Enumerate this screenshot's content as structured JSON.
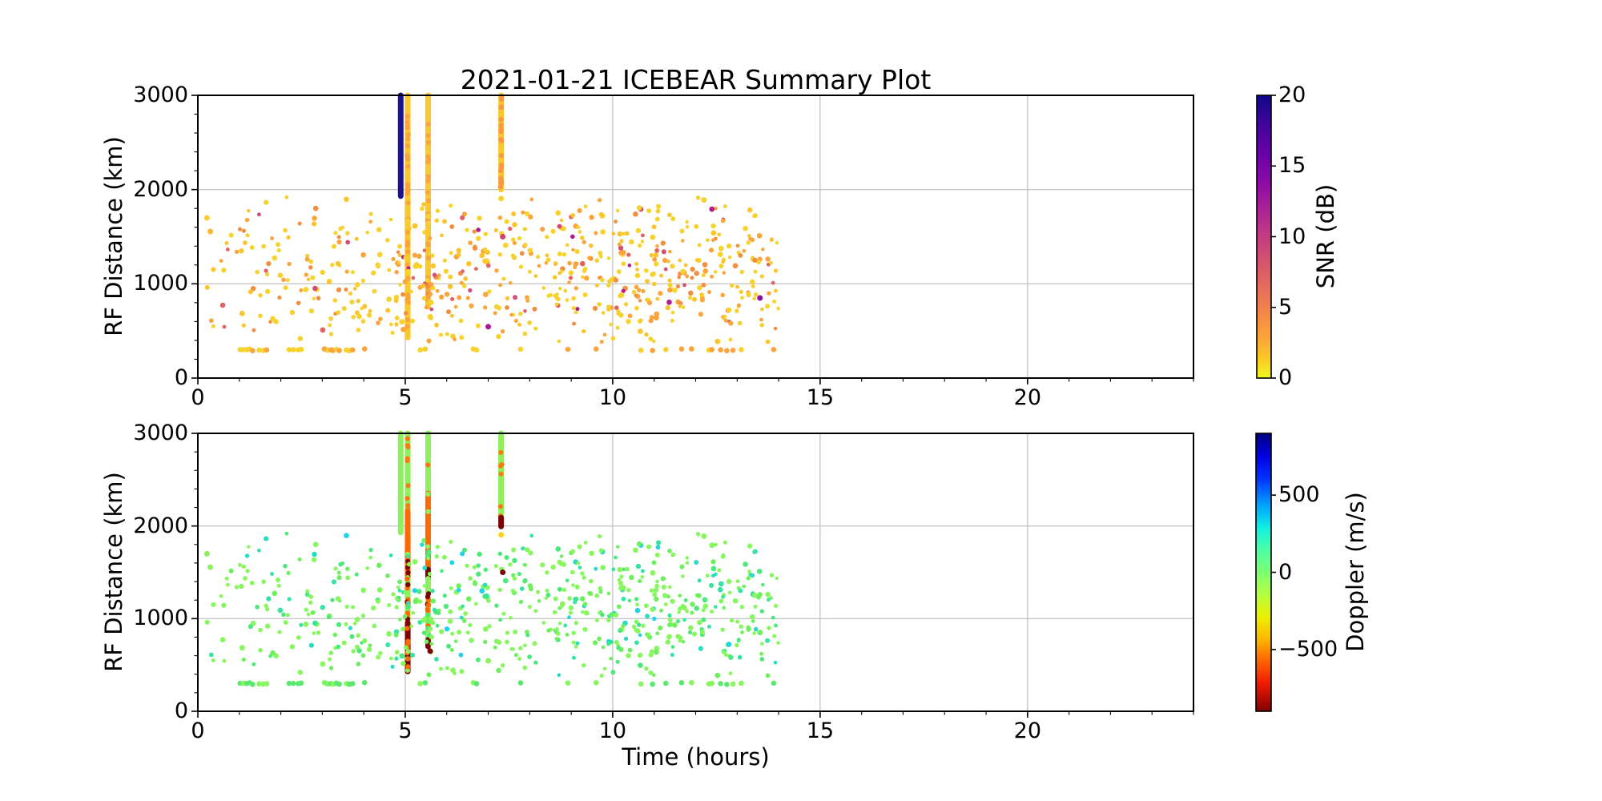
{
  "figure": {
    "title": "2021-01-21 ICEBEAR Summary Plot",
    "background": "#ffffff"
  },
  "chart_data": {
    "type": "scatter",
    "title": "2021-01-21 ICEBEAR Summary Plot",
    "xlabel": "Time (hours)",
    "x_range": [
      0,
      24
    ],
    "x_major_ticks": [
      0,
      5,
      10,
      15,
      20
    ],
    "x_tick_labels": [
      "0",
      "5",
      "10",
      "15",
      "20"
    ],
    "x_minor_step": 1,
    "grid": true,
    "style": {
      "spine_color": "#000000",
      "grid_color": "#bdbdbd",
      "tick_color": "#000000",
      "text_color": "#000000"
    },
    "panels": [
      {
        "id": "snr",
        "ylabel": "RF Distance (km)",
        "y_range": [
          0,
          3000
        ],
        "y_major_ticks": [
          0,
          1000,
          2000,
          3000
        ],
        "y_tick_labels": [
          "0",
          "1000",
          "2000",
          "3000"
        ],
        "y_minor_step": 200,
        "colorbar": {
          "label": "SNR (dB)",
          "range": [
            0,
            20
          ],
          "tick_values": [
            0,
            5,
            10,
            15,
            20
          ],
          "tick_labels": [
            "0",
            "5",
            "10",
            "15",
            "20"
          ],
          "colormap": "plasma reversed (0=yellow, 20=dark blue)",
          "gradient_top_to_bottom": [
            [
              0,
              "#0d0887"
            ],
            [
              10,
              "#41049d"
            ],
            [
              21,
              "#6a00a8"
            ],
            [
              32,
              "#8f0da4"
            ],
            [
              43,
              "#b12a90"
            ],
            [
              54,
              "#cc4778"
            ],
            [
              65,
              "#e16462"
            ],
            [
              76,
              "#f2844b"
            ],
            [
              86,
              "#fca636"
            ],
            [
              94,
              "#fcce25"
            ],
            [
              100,
              "#f0f921"
            ]
          ]
        }
      },
      {
        "id": "doppler",
        "ylabel": "RF Distance (km)",
        "y_range": [
          0,
          3000
        ],
        "y_major_ticks": [
          0,
          1000,
          2000,
          3000
        ],
        "y_tick_labels": [
          "0",
          "1000",
          "2000",
          "3000"
        ],
        "y_minor_step": 200,
        "colorbar": {
          "label": "Doppler (m/s)",
          "range": [
            -900,
            900
          ],
          "tick_values": [
            500,
            0,
            -500
          ],
          "tick_labels": [
            "500",
            "0",
            "−500"
          ],
          "colormap": "jet reversed (-900=dark red, 0=green, +900=dark blue)",
          "gradient_top_to_bottom": [
            [
              0,
              "#000080"
            ],
            [
              8,
              "#0000e0"
            ],
            [
              16,
              "#0030ff"
            ],
            [
              26,
              "#00a4ff"
            ],
            [
              34,
              "#0ff0e1"
            ],
            [
              42,
              "#4dffa5"
            ],
            [
              50,
              "#7dff73"
            ],
            [
              58,
              "#b4ff42"
            ],
            [
              66,
              "#eaf000"
            ],
            [
              74,
              "#ffb600"
            ],
            [
              82,
              "#ff6200"
            ],
            [
              90,
              "#ef1a00"
            ],
            [
              100,
              "#7f0000"
            ]
          ]
        }
      }
    ],
    "cloud": {
      "comment": "background echo scatter, identical point positions in both panels, t in hours, y in km",
      "seed": 1337,
      "count": 640,
      "t_extent": [
        0.2,
        14.05
      ],
      "t_bands": [
        [
          0.2,
          1.0,
          0.02
        ],
        [
          1.0,
          2.6,
          0.06
        ],
        [
          2.6,
          4.6,
          0.1
        ],
        [
          4.6,
          7.2,
          0.22
        ],
        [
          7.2,
          10.2,
          0.27
        ],
        [
          10.2,
          14.05,
          0.33
        ]
      ],
      "y_bands": [
        [
          380,
          560,
          0.06
        ],
        [
          560,
          800,
          0.15
        ],
        [
          800,
          1100,
          0.26
        ],
        [
          1100,
          1420,
          0.28
        ],
        [
          1420,
          1680,
          0.16
        ],
        [
          1680,
          1820,
          0.07
        ],
        [
          1820,
          1930,
          0.02
        ]
      ],
      "snr_palette": [
        [
          "#f7d22e",
          0.4
        ],
        [
          "#fcc42c",
          0.16
        ],
        [
          "#fba43b",
          0.22
        ],
        [
          "#f28e40",
          0.11
        ],
        [
          "#e16462",
          0.07
        ],
        [
          "#d14f73",
          0.03
        ],
        [
          "#b21d8e",
          0.01
        ]
      ],
      "doppler_palette": [
        [
          "#86f75d",
          0.5
        ],
        [
          "#6ef05e",
          0.2
        ],
        [
          "#4be87a",
          0.13
        ],
        [
          "#35e4a0",
          0.09
        ],
        [
          "#28dcc4",
          0.05
        ],
        [
          "#1fd3e8",
          0.03
        ]
      ],
      "radius_px": [
        2.2,
        3.4
      ]
    },
    "row_300km": {
      "comment": "row of echoes near 300 km range",
      "y_km": 300,
      "y_jitter_km": 10,
      "t_positions": [
        1.02,
        1.1,
        1.18,
        1.25,
        1.32,
        1.48,
        1.58,
        1.66,
        2.2,
        2.3,
        2.42,
        3.05,
        3.14,
        3.26,
        3.34,
        3.58,
        3.66,
        4.02,
        5.36,
        5.48,
        6.64,
        6.72,
        7.78,
        8.92,
        9.6,
        10.68,
        10.96,
        11.28,
        11.66,
        11.9,
        12.32,
        12.6,
        12.75,
        12.9,
        13.1,
        13.88
      ],
      "snr_colors": [
        "#f7d22e",
        "#fba43b"
      ],
      "doppler_colors": [
        "#86f75d",
        "#5ae96e"
      ]
    },
    "streaks": {
      "comment": "vertical range-spread events; segments are [y_from_km, y_to_km], speckles = [color, fraction]",
      "snr": [
        {
          "t": 4.89,
          "segments": [
            {
              "from": 1930,
              "to": 3000,
              "base": "#1c128f",
              "speckles": []
            }
          ]
        },
        {
          "t": 5.06,
          "segments": [
            {
              "from": 430,
              "to": 3000,
              "base": "#f9c82e",
              "speckles": [
                [
                  "#fba43b",
                  0.35
                ]
              ]
            }
          ]
        },
        {
          "t": 5.55,
          "segments": [
            {
              "from": 760,
              "to": 3000,
              "base": "#f9c82e",
              "speckles": [
                [
                  "#fba43b",
                  0.28
                ]
              ]
            }
          ]
        },
        {
          "t": 7.31,
          "segments": [
            {
              "from": 2000,
              "to": 3000,
              "base": "#f9c82e",
              "speckles": [
                [
                  "#f9964a",
                  0.5
                ]
              ]
            }
          ]
        }
      ],
      "doppler": [
        {
          "t": 4.89,
          "segments": [
            {
              "from": 1930,
              "to": 3000,
              "base": "#8df05c",
              "speckles": []
            }
          ]
        },
        {
          "t": 5.06,
          "segments": [
            {
              "from": 2150,
              "to": 3000,
              "base": "#8df05c",
              "speckles": [
                [
                  "#ff7913",
                  0.3
                ]
              ]
            },
            {
              "from": 1850,
              "to": 2150,
              "base": "#ff6a00",
              "speckles": []
            },
            {
              "from": 1430,
              "to": 1850,
              "base": "#ff6a00",
              "speckles": [
                [
                  "#8df05c",
                  0.25
                ],
                [
                  "#7a0403",
                  0.2
                ]
              ]
            },
            {
              "from": 950,
              "to": 1430,
              "base": "#8df05c",
              "speckles": [
                [
                  "#ff6a00",
                  0.35
                ],
                [
                  "#7a0403",
                  0.25
                ]
              ]
            },
            {
              "from": 430,
              "to": 950,
              "base": "#7a0403",
              "speckles": [
                [
                  "#8df05c",
                  0.3
                ],
                [
                  "#ff6a00",
                  0.15
                ]
              ]
            }
          ]
        },
        {
          "t": 5.55,
          "segments": [
            {
              "from": 2350,
              "to": 3000,
              "base": "#8df05c",
              "speckles": [
                [
                  "#ff7913",
                  0.2
                ]
              ]
            },
            {
              "from": 1530,
              "to": 2350,
              "base": "#ff6a00",
              "speckles": [
                [
                  "#8df05c",
                  0.12
                ]
              ]
            },
            {
              "from": 1430,
              "to": 1530,
              "base": "#7a0403",
              "speckles": []
            },
            {
              "from": 770,
              "to": 1430,
              "base": "#8df05c",
              "speckles": [
                [
                  "#ff6a00",
                  0.2
                ],
                [
                  "#7a0403",
                  0.2
                ]
              ]
            },
            {
              "from": 700,
              "to": 770,
              "base": "#7a0403",
              "speckles": []
            }
          ]
        },
        {
          "t": 7.31,
          "segments": [
            {
              "from": 2090,
              "to": 3000,
              "base": "#8df05c",
              "speckles": [
                [
                  "#ff7913",
                  0.15
                ]
              ]
            },
            {
              "from": 1995,
              "to": 2090,
              "base": "#7a0403",
              "speckles": []
            }
          ]
        }
      ]
    },
    "special_points": [
      {
        "t": 0.22,
        "y": 1700,
        "snr": "#f7d22e",
        "doppler": "#8df05c"
      },
      {
        "t": 0.3,
        "y": 1555,
        "snr": "#f9b82f",
        "doppler": "#8df05c"
      },
      {
        "t": 7.0,
        "y": 545,
        "snr": "#a81a9b",
        "doppler": "#8df05c"
      },
      {
        "t": 13.55,
        "y": 850,
        "snr": "#8f0da4",
        "doppler": "#6ef05e"
      },
      {
        "t": 7.35,
        "y": 1500,
        "snr": "#cc4470",
        "doppler": "#7a0403"
      },
      {
        "t": 7.31,
        "y": 1905,
        "snr": "#f7d22e",
        "doppler": "#ffd21f"
      },
      {
        "t": 5.6,
        "y": 650,
        "snr": "#f7d22e",
        "doppler": "#7a0403"
      },
      {
        "t": 12.2,
        "y": 1890,
        "snr": "#f7d22e",
        "doppler": "#86f75d"
      }
    ]
  }
}
